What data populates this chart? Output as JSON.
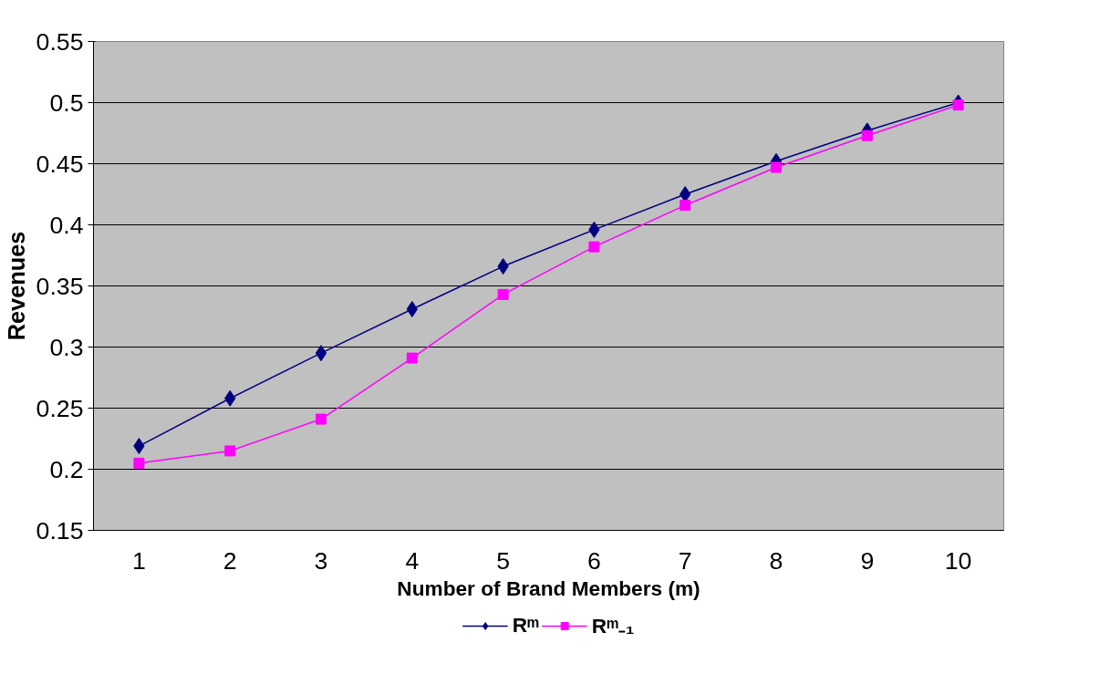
{
  "chart_data": {
    "type": "line",
    "xlabel": "Number of Brand Members (m)",
    "ylabel": "Revenues",
    "categories": [
      "1",
      "2",
      "3",
      "4",
      "5",
      "6",
      "7",
      "8",
      "9",
      "10"
    ],
    "series": [
      {
        "name": "Rᵐ",
        "color": "#000080",
        "marker": "diamond",
        "values": [
          0.219,
          0.258,
          0.295,
          0.331,
          0.366,
          0.396,
          0.425,
          0.452,
          0.477,
          0.5
        ]
      },
      {
        "name": "Rᵐ₋₁",
        "color": "#ff00ff",
        "marker": "square",
        "values": [
          0.205,
          0.215,
          0.241,
          0.291,
          0.343,
          0.382,
          0.416,
          0.447,
          0.473,
          0.498
        ]
      }
    ],
    "ylim": [
      0.15,
      0.55
    ],
    "yticks": [
      0.15,
      0.2,
      0.25,
      0.3,
      0.35,
      0.4,
      0.45,
      0.5,
      0.55
    ],
    "grid": "y",
    "legend": "bottom"
  }
}
